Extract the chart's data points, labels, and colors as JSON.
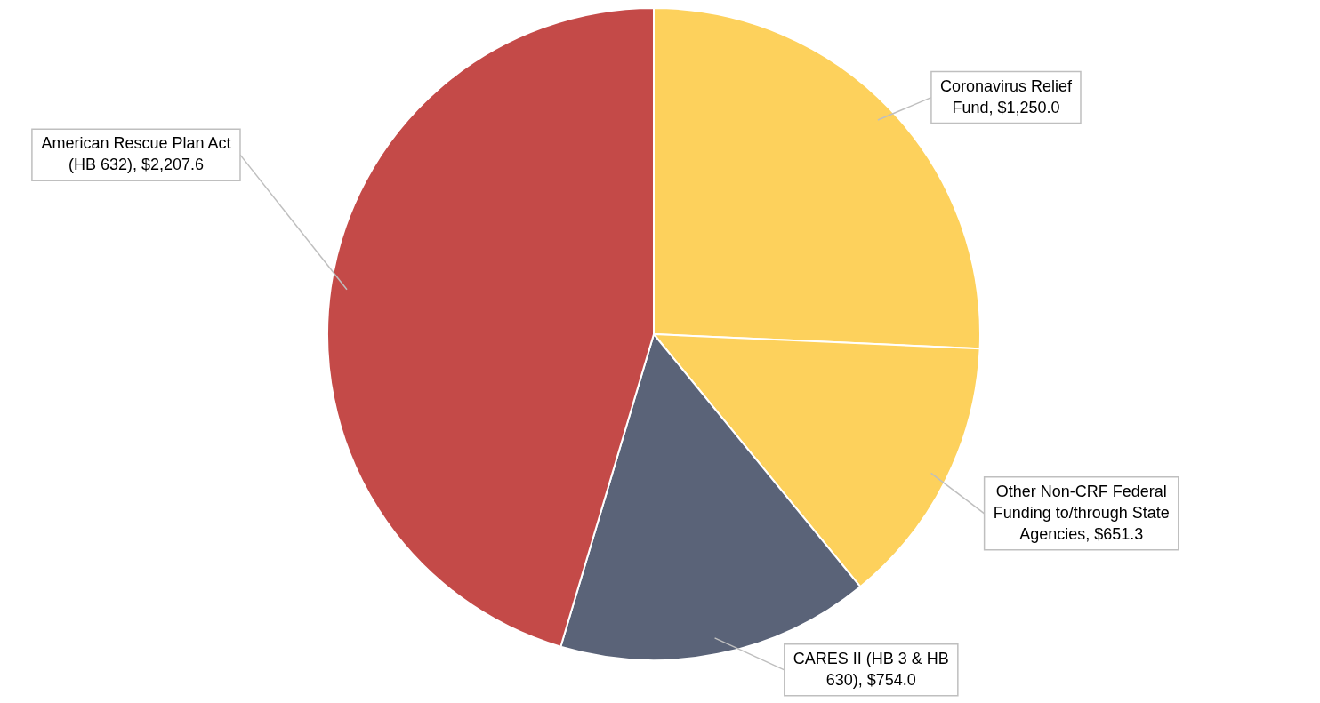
{
  "chart_data": {
    "type": "pie",
    "categories": [
      "Coronavirus Relief Fund",
      "Other Non-CRF Federal Funding to/through State Agencies",
      "CARES II (HB 3 & HB 630)",
      "American Rescue Plan Act (HB 632)"
    ],
    "values": [
      1250.0,
      651.3,
      754.0,
      2207.6
    ],
    "value_labels": [
      "$1,250.0",
      "$651.3",
      "$754.0",
      "$2,207.6"
    ],
    "colors": [
      "#fdd15c",
      "#fdd15c",
      "#5a6378",
      "#c44a48"
    ],
    "legend": false
  }
}
